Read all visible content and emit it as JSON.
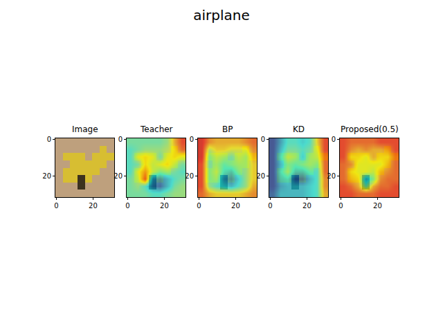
{
  "chart_data": {
    "type": "image_grid",
    "title": "airplane",
    "xlim": [
      -0.5,
      31.5
    ],
    "ylim": [
      31.5,
      -0.5
    ],
    "xticks": [
      0,
      20
    ],
    "yticks": [
      0,
      20
    ],
    "color": "jet",
    "zlim": [
      0,
      1
    ],
    "image": {
      "title": "Image",
      "rgb": [
        [
          [
            190,
            160,
            125
          ],
          [
            190,
            160,
            125
          ],
          [
            190,
            160,
            125
          ],
          [
            190,
            160,
            125
          ],
          [
            190,
            160,
            125
          ],
          [
            190,
            160,
            125
          ],
          [
            190,
            160,
            125
          ],
          [
            190,
            160,
            125
          ]
        ],
        [
          [
            190,
            160,
            125
          ],
          [
            190,
            160,
            125
          ],
          [
            190,
            160,
            125
          ],
          [
            190,
            160,
            125
          ],
          [
            190,
            160,
            125
          ],
          [
            190,
            160,
            125
          ],
          [
            215,
            190,
            50
          ],
          [
            190,
            160,
            125
          ]
        ],
        [
          [
            190,
            160,
            125
          ],
          [
            215,
            190,
            50
          ],
          [
            215,
            190,
            50
          ],
          [
            215,
            190,
            50
          ],
          [
            190,
            160,
            125
          ],
          [
            215,
            190,
            50
          ],
          [
            215,
            190,
            50
          ],
          [
            215,
            190,
            50
          ]
        ],
        [
          [
            190,
            160,
            125
          ],
          [
            190,
            160,
            125
          ],
          [
            215,
            190,
            50
          ],
          [
            215,
            190,
            50
          ],
          [
            215,
            190,
            50
          ],
          [
            215,
            190,
            50
          ],
          [
            215,
            190,
            50
          ],
          [
            190,
            160,
            125
          ]
        ],
        [
          [
            190,
            160,
            125
          ],
          [
            215,
            190,
            50
          ],
          [
            215,
            190,
            50
          ],
          [
            215,
            190,
            50
          ],
          [
            215,
            190,
            50
          ],
          [
            215,
            190,
            50
          ],
          [
            190,
            160,
            125
          ],
          [
            190,
            160,
            125
          ]
        ],
        [
          [
            190,
            160,
            125
          ],
          [
            215,
            190,
            50
          ],
          [
            215,
            190,
            50
          ],
          [
            60,
            50,
            30
          ],
          [
            215,
            190,
            50
          ],
          [
            190,
            160,
            125
          ],
          [
            190,
            160,
            125
          ],
          [
            190,
            160,
            125
          ]
        ],
        [
          [
            190,
            160,
            125
          ],
          [
            190,
            160,
            125
          ],
          [
            190,
            160,
            125
          ],
          [
            60,
            50,
            30
          ],
          [
            190,
            160,
            125
          ],
          [
            190,
            160,
            125
          ],
          [
            190,
            160,
            125
          ],
          [
            190,
            160,
            125
          ]
        ],
        [
          [
            190,
            160,
            125
          ],
          [
            190,
            160,
            125
          ],
          [
            190,
            160,
            125
          ],
          [
            190,
            160,
            125
          ],
          [
            190,
            160,
            125
          ],
          [
            190,
            160,
            125
          ],
          [
            190,
            160,
            125
          ],
          [
            190,
            160,
            125
          ]
        ]
      ]
    },
    "panels": [
      {
        "title": "Teacher",
        "cells": [
          [
            0.45,
            0.45,
            0.45,
            0.45,
            0.45,
            0.5,
            0.7,
            0.85
          ],
          [
            0.4,
            0.45,
            0.5,
            0.5,
            0.5,
            0.55,
            0.65,
            0.8
          ],
          [
            0.4,
            0.6,
            0.65,
            0.6,
            0.45,
            0.6,
            0.65,
            0.6
          ],
          [
            0.4,
            0.45,
            0.65,
            0.55,
            0.6,
            0.65,
            0.55,
            0.45
          ],
          [
            0.4,
            0.6,
            0.75,
            0.55,
            0.45,
            0.5,
            0.45,
            0.4
          ],
          [
            0.45,
            0.55,
            0.85,
            0.25,
            0.2,
            0.3,
            0.4,
            0.45
          ],
          [
            0.45,
            0.5,
            0.4,
            0.2,
            0.15,
            0.3,
            0.45,
            0.5
          ],
          [
            0.45,
            0.45,
            0.45,
            0.4,
            0.4,
            0.45,
            0.5,
            0.5
          ]
        ]
      },
      {
        "title": "BP",
        "cells": [
          [
            0.9,
            0.75,
            0.7,
            0.7,
            0.7,
            0.7,
            0.75,
            0.8
          ],
          [
            0.9,
            0.55,
            0.65,
            0.65,
            0.6,
            0.6,
            0.6,
            0.75
          ],
          [
            0.9,
            0.45,
            0.55,
            0.5,
            0.45,
            0.55,
            0.5,
            0.7
          ],
          [
            0.85,
            0.45,
            0.5,
            0.4,
            0.45,
            0.5,
            0.5,
            0.65
          ],
          [
            0.85,
            0.45,
            0.55,
            0.35,
            0.3,
            0.45,
            0.5,
            0.65
          ],
          [
            0.85,
            0.45,
            0.5,
            0.25,
            0.2,
            0.35,
            0.5,
            0.65
          ],
          [
            0.85,
            0.5,
            0.4,
            0.35,
            0.3,
            0.4,
            0.5,
            0.7
          ],
          [
            0.8,
            0.7,
            0.65,
            0.65,
            0.65,
            0.65,
            0.7,
            0.75
          ]
        ]
      },
      {
        "title": "KD",
        "cells": [
          [
            0.1,
            0.25,
            0.4,
            0.4,
            0.35,
            0.4,
            0.65,
            0.85
          ],
          [
            0.1,
            0.3,
            0.45,
            0.45,
            0.4,
            0.45,
            0.6,
            0.85
          ],
          [
            0.1,
            0.35,
            0.55,
            0.5,
            0.35,
            0.5,
            0.55,
            0.8
          ],
          [
            0.1,
            0.3,
            0.45,
            0.4,
            0.45,
            0.5,
            0.45,
            0.8
          ],
          [
            0.1,
            0.35,
            0.5,
            0.3,
            0.3,
            0.4,
            0.4,
            0.8
          ],
          [
            0.1,
            0.3,
            0.35,
            0.15,
            0.15,
            0.3,
            0.4,
            0.75
          ],
          [
            0.1,
            0.25,
            0.3,
            0.3,
            0.3,
            0.35,
            0.4,
            0.75
          ],
          [
            0.15,
            0.3,
            0.3,
            0.3,
            0.3,
            0.35,
            0.4,
            0.7
          ]
        ]
      },
      {
        "title": "Proposed(0.5)",
        "cells": [
          [
            0.85,
            0.8,
            0.8,
            0.8,
            0.8,
            0.85,
            0.85,
            0.85
          ],
          [
            0.85,
            0.75,
            0.7,
            0.75,
            0.7,
            0.7,
            0.75,
            0.85
          ],
          [
            0.85,
            0.65,
            0.65,
            0.6,
            0.7,
            0.65,
            0.65,
            0.8
          ],
          [
            0.8,
            0.75,
            0.6,
            0.6,
            0.6,
            0.6,
            0.7,
            0.8
          ],
          [
            0.8,
            0.65,
            0.6,
            0.6,
            0.55,
            0.7,
            0.75,
            0.8
          ],
          [
            0.8,
            0.7,
            0.65,
            0.3,
            0.45,
            0.75,
            0.8,
            0.8
          ],
          [
            0.85,
            0.8,
            0.7,
            0.45,
            0.7,
            0.8,
            0.8,
            0.85
          ],
          [
            0.85,
            0.85,
            0.8,
            0.8,
            0.8,
            0.85,
            0.85,
            0.85
          ]
        ]
      }
    ]
  }
}
